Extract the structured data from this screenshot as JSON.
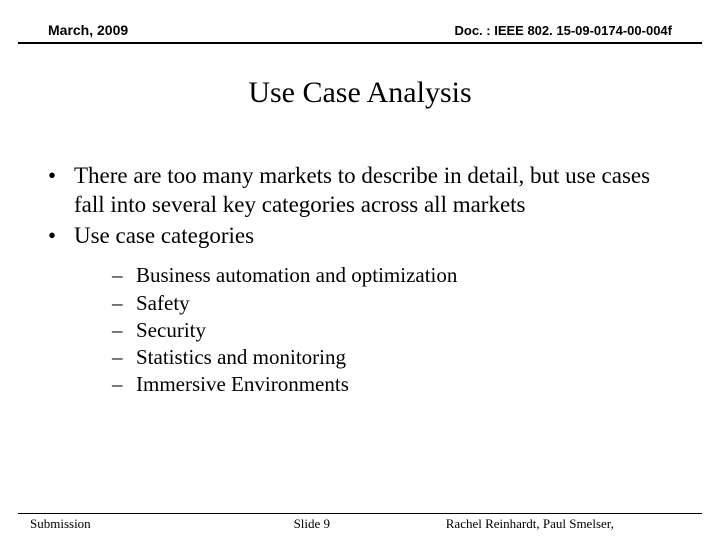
{
  "header": {
    "date": "March, 2009",
    "doc": "Doc. : IEEE 802. 15-09-0174-00-004f"
  },
  "title": "Use Case Analysis",
  "bullets": [
    "There are too many markets to describe in detail, but use cases fall into several key categories across all markets",
    "Use case categories"
  ],
  "sub_bullets": [
    "Business automation and optimization",
    "Safety",
    "Security",
    "Statistics and monitoring",
    "Immersive Environments"
  ],
  "footer": {
    "left": "Submission",
    "center": "Slide 9",
    "right": "Rachel Reinhardt, Paul Smelser,"
  },
  "style": {
    "background": "#ffffff",
    "text_color": "#000000",
    "title_fontsize": 30,
    "bullet_fontsize": 23,
    "sub_fontsize": 21
  }
}
